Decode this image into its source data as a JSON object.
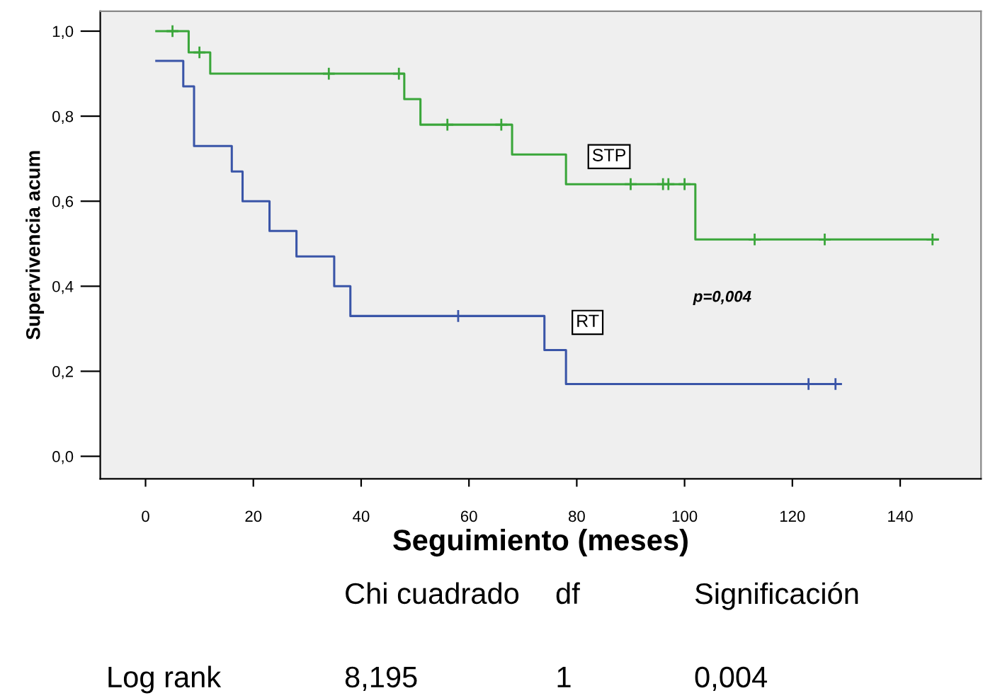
{
  "chart_data": {
    "type": "step",
    "xlabel": "Seguimiento (meses)",
    "ylabel": "Supervivencia acum",
    "xlim": [
      -8.4,
      155
    ],
    "ylim": [
      -0.053,
      1.047
    ],
    "xticks": [
      0,
      20,
      40,
      60,
      80,
      100,
      120,
      140
    ],
    "yticks": [
      {
        "value": 0,
        "label": "0,0"
      },
      {
        "value": 0.2,
        "label": "0,2"
      },
      {
        "value": 0.4,
        "label": "0,4"
      },
      {
        "value": 0.6,
        "label": "0,6"
      },
      {
        "value": 0.8,
        "label": "0,8"
      },
      {
        "value": 1.0,
        "label": "1,0"
      }
    ],
    "grid": false,
    "legend": false,
    "line_style": "solid",
    "marker": "none",
    "series": [
      {
        "name": "STP",
        "color": "#3aa63a",
        "x": [
          2,
          8,
          12,
          48,
          51,
          68,
          78,
          102,
          147
        ],
        "values": [
          1.0,
          0.95,
          0.9,
          0.84,
          0.78,
          0.71,
          0.64,
          0.51,
          0.51
        ]
      },
      {
        "name": "RT",
        "color": "#3a55a8",
        "x": [
          2,
          7,
          9,
          16,
          18,
          23,
          28,
          35,
          38,
          74,
          78,
          129
        ],
        "values": [
          0.93,
          0.87,
          0.73,
          0.67,
          0.6,
          0.53,
          0.47,
          0.4,
          0.33,
          0.25,
          0.17,
          0.17
        ]
      },
      {
        "type": "scatter",
        "marker": "cross",
        "color": "#3aa63a",
        "x": [
          5,
          10,
          34,
          47,
          56,
          66,
          90,
          96,
          97,
          100,
          113,
          126,
          146
        ],
        "values": [
          1.0,
          0.95,
          0.9,
          0.9,
          0.78,
          0.78,
          0.64,
          0.64,
          0.64,
          0.64,
          0.51,
          0.51,
          0.51
        ]
      },
      {
        "type": "scatter",
        "marker": "cross",
        "color": "#3a55a8",
        "x": [
          58,
          123,
          128
        ],
        "values": [
          0.33,
          0.17,
          0.17
        ]
      }
    ],
    "annotations": [
      "p=0,004",
      "Chi cuadrado",
      "df",
      "Significación",
      "Log rank",
      "8,195",
      "1",
      "0,004"
    ]
  }
}
